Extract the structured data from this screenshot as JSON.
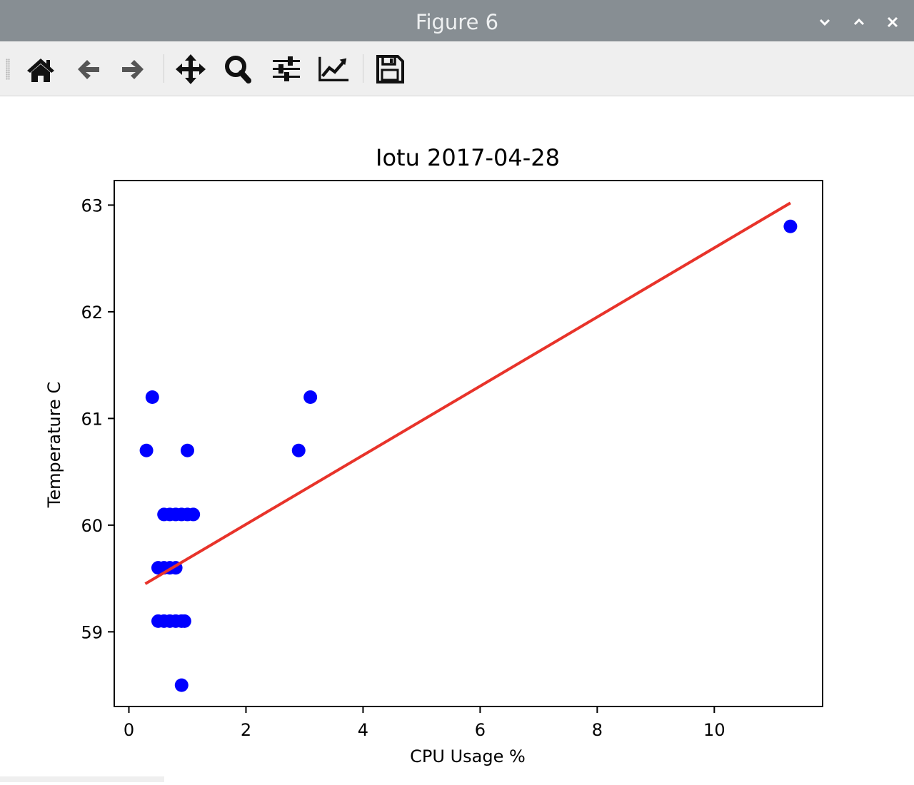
{
  "window": {
    "title": "Figure 6",
    "controls": [
      "minimize-icon",
      "maximize-icon",
      "close-icon"
    ]
  },
  "toolbar": {
    "buttons": [
      {
        "name": "home",
        "icon": "home-icon"
      },
      {
        "name": "back",
        "icon": "arrow-left-icon"
      },
      {
        "name": "forward",
        "icon": "arrow-right-icon"
      },
      {
        "name": "pan",
        "icon": "move-icon"
      },
      {
        "name": "zoom",
        "icon": "magnifier-icon"
      },
      {
        "name": "configure-subplots",
        "icon": "sliders-icon"
      },
      {
        "name": "edit-axes",
        "icon": "line-chart-icon"
      },
      {
        "name": "save",
        "icon": "floppy-disk-icon"
      }
    ]
  },
  "chart_data": {
    "type": "scatter",
    "title": "Iotu 2017-04-28",
    "xlabel": "CPU Usage %",
    "ylabel": "Temperature C",
    "xlim": [
      -0.25,
      11.85
    ],
    "ylim": [
      58.3,
      63.23
    ],
    "xticks": [
      0,
      2,
      4,
      6,
      8,
      10
    ],
    "yticks": [
      59,
      60,
      61,
      62,
      63
    ],
    "grid": false,
    "series": [
      {
        "color": "#0000ff",
        "points": [
          [
            0.3,
            60.7
          ],
          [
            0.4,
            61.2
          ],
          [
            1.0,
            60.7
          ],
          [
            2.9,
            60.7
          ],
          [
            3.1,
            61.2
          ],
          [
            11.3,
            62.8
          ],
          [
            0.6,
            60.1
          ],
          [
            0.7,
            60.1
          ],
          [
            0.8,
            60.1
          ],
          [
            0.9,
            60.1
          ],
          [
            1.0,
            60.1
          ],
          [
            1.1,
            60.1
          ],
          [
            0.5,
            59.6
          ],
          [
            0.6,
            59.6
          ],
          [
            0.7,
            59.6
          ],
          [
            0.8,
            59.6
          ],
          [
            0.5,
            59.1
          ],
          [
            0.6,
            59.1
          ],
          [
            0.7,
            59.1
          ],
          [
            0.8,
            59.1
          ],
          [
            0.9,
            59.1
          ],
          [
            0.95,
            59.1
          ],
          [
            0.9,
            58.5
          ]
        ]
      },
      {
        "type": "line",
        "color": "#e8332a",
        "points": [
          [
            0.28,
            59.45
          ],
          [
            11.3,
            63.02
          ]
        ]
      }
    ]
  }
}
